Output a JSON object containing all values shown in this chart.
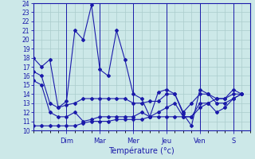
{
  "xlabel": "Température (°c)",
  "bg_color": "#cce8e8",
  "grid_color": "#aacccc",
  "line_color": "#1a1aaa",
  "ylim": [
    10,
    24
  ],
  "yticks": [
    10,
    11,
    12,
    13,
    14,
    15,
    16,
    17,
    18,
    19,
    20,
    21,
    22,
    23,
    24
  ],
  "day_labels": [
    "Dim",
    "Mar",
    "Mer",
    "Jeu",
    "Ven",
    "S"
  ],
  "day_tick_positions": [
    2.0,
    4.0,
    6.0,
    8.0,
    10.0,
    12.0
  ],
  "day_vline_positions": [
    2.0,
    4.0,
    6.0,
    8.0,
    10.0,
    12.0
  ],
  "xlim": [
    0,
    13
  ],
  "series1_x": [
    0.0,
    0.5,
    1.0,
    1.5,
    2.0,
    2.5,
    3.0,
    3.5,
    4.0,
    4.5,
    5.0,
    5.5,
    6.0,
    6.5,
    7.0,
    7.5,
    8.0,
    8.5,
    9.0,
    9.5,
    10.0,
    10.5,
    11.0,
    11.5,
    12.0,
    12.5
  ],
  "series1_y": [
    18.0,
    17.0,
    17.8,
    12.5,
    13.2,
    21.0,
    20.0,
    23.8,
    16.7,
    16.0,
    21.0,
    17.8,
    14.0,
    13.5,
    11.5,
    14.2,
    14.5,
    14.0,
    11.8,
    10.5,
    14.5,
    14.0,
    13.0,
    13.0,
    13.5,
    14.0
  ],
  "series2_x": [
    0.0,
    0.5,
    1.0,
    1.5,
    2.0,
    2.5,
    3.0,
    3.5,
    4.0,
    4.5,
    5.0,
    5.5,
    6.0,
    6.5,
    7.0,
    7.5,
    8.0,
    8.5,
    9.0,
    9.5,
    10.0,
    10.5,
    11.0,
    11.5,
    12.0,
    12.5
  ],
  "series2_y": [
    16.5,
    16.0,
    13.0,
    12.5,
    12.8,
    13.0,
    13.5,
    13.5,
    13.5,
    13.5,
    13.5,
    13.5,
    13.0,
    13.0,
    13.2,
    13.2,
    14.0,
    14.0,
    12.0,
    13.0,
    14.0,
    14.0,
    13.5,
    13.5,
    14.5,
    14.0
  ],
  "series3_x": [
    0.0,
    0.5,
    1.0,
    1.5,
    2.0,
    2.5,
    3.0,
    3.5,
    4.0,
    4.5,
    5.0,
    5.5,
    6.0,
    6.5,
    7.0,
    7.5,
    8.0,
    8.5,
    9.0,
    9.5,
    10.0,
    10.5,
    11.0,
    11.5,
    12.0,
    12.5
  ],
  "series3_y": [
    15.5,
    15.0,
    12.0,
    11.5,
    11.5,
    12.0,
    11.0,
    11.2,
    11.5,
    11.5,
    11.5,
    11.5,
    11.5,
    12.0,
    11.5,
    12.0,
    12.5,
    13.0,
    11.5,
    11.5,
    12.5,
    13.0,
    12.0,
    12.5,
    13.5,
    14.0
  ],
  "series4_x": [
    0.0,
    0.5,
    1.0,
    1.5,
    2.0,
    2.5,
    3.0,
    3.5,
    4.0,
    4.5,
    5.0,
    5.5,
    6.0,
    6.5,
    7.0,
    7.5,
    8.0,
    8.5,
    9.0,
    9.5,
    10.0,
    10.5,
    11.0,
    11.5,
    12.0,
    12.5
  ],
  "series4_y": [
    10.5,
    10.5,
    10.5,
    10.5,
    10.5,
    10.5,
    10.8,
    11.0,
    11.0,
    11.0,
    11.2,
    11.2,
    11.2,
    11.2,
    11.5,
    11.5,
    11.5,
    11.5,
    11.5,
    11.5,
    13.0,
    13.0,
    13.5,
    13.5,
    14.0,
    14.0
  ]
}
